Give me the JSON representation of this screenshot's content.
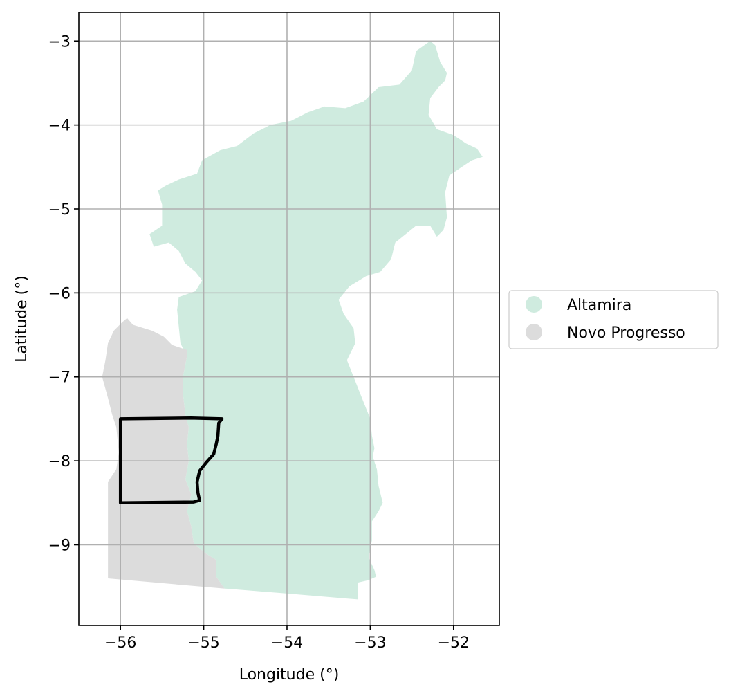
{
  "chart_data": {
    "type": "map",
    "xlabel": "Longitude (°)",
    "ylabel": "Latitude (°)",
    "xlim": [
      -56.5,
      -51.45
    ],
    "ylim": [
      -9.96,
      -2.66
    ],
    "xticks": [
      -56,
      -55,
      -54,
      -53,
      -52
    ],
    "yticks": [
      -3,
      -4,
      -5,
      -6,
      -7,
      -8,
      -9
    ],
    "xtick_labels": [
      "−56",
      "−55",
      "−54",
      "−53",
      "−52"
    ],
    "ytick_labels": [
      "−3",
      "−4",
      "−5",
      "−6",
      "−7",
      "−8",
      "−9"
    ],
    "grid": true,
    "legend_position": "right, outside plot",
    "regions": [
      {
        "name": "Altamira",
        "color": "#cfebdf",
        "outline": [
          [
            -52.28,
            -3.0
          ],
          [
            -52.22,
            -3.05
          ],
          [
            -52.16,
            -3.25
          ],
          [
            -52.08,
            -3.38
          ],
          [
            -52.1,
            -3.47
          ],
          [
            -52.18,
            -3.55
          ],
          [
            -52.28,
            -3.68
          ],
          [
            -52.3,
            -3.88
          ],
          [
            -52.2,
            -4.05
          ],
          [
            -52.0,
            -4.12
          ],
          [
            -51.85,
            -4.22
          ],
          [
            -51.72,
            -4.28
          ],
          [
            -51.65,
            -4.38
          ],
          [
            -51.78,
            -4.42
          ],
          [
            -51.9,
            -4.5
          ],
          [
            -52.05,
            -4.6
          ],
          [
            -52.1,
            -4.8
          ],
          [
            -52.08,
            -5.1
          ],
          [
            -52.12,
            -5.25
          ],
          [
            -52.2,
            -5.33
          ],
          [
            -52.28,
            -5.2
          ],
          [
            -52.45,
            -5.2
          ],
          [
            -52.55,
            -5.28
          ],
          [
            -52.7,
            -5.4
          ],
          [
            -52.75,
            -5.6
          ],
          [
            -52.88,
            -5.75
          ],
          [
            -53.05,
            -5.8
          ],
          [
            -53.25,
            -5.92
          ],
          [
            -53.38,
            -6.08
          ],
          [
            -53.32,
            -6.25
          ],
          [
            -53.2,
            -6.42
          ],
          [
            -53.18,
            -6.6
          ],
          [
            -53.28,
            -6.8
          ],
          [
            -53.2,
            -7.0
          ],
          [
            -53.1,
            -7.25
          ],
          [
            -53.0,
            -7.5
          ],
          [
            -52.98,
            -7.7
          ],
          [
            -52.95,
            -7.85
          ],
          [
            -52.97,
            -7.95
          ],
          [
            -52.92,
            -8.1
          ],
          [
            -52.9,
            -8.3
          ],
          [
            -52.85,
            -8.5
          ],
          [
            -52.9,
            -8.6
          ],
          [
            -52.98,
            -8.72
          ],
          [
            -52.98,
            -8.95
          ],
          [
            -53.02,
            -9.15
          ],
          [
            -52.95,
            -9.3
          ],
          [
            -52.93,
            -9.38
          ],
          [
            -53.02,
            -9.42
          ],
          [
            -53.15,
            -9.45
          ],
          [
            -53.15,
            -9.65
          ],
          [
            -54.0,
            -9.58
          ],
          [
            -54.75,
            -9.52
          ],
          [
            -54.85,
            -9.38
          ],
          [
            -54.85,
            -9.18
          ],
          [
            -54.98,
            -9.1
          ],
          [
            -55.12,
            -8.98
          ],
          [
            -55.15,
            -8.78
          ],
          [
            -55.2,
            -8.6
          ],
          [
            -55.15,
            -8.4
          ],
          [
            -55.22,
            -8.22
          ],
          [
            -55.18,
            -8.0
          ],
          [
            -55.2,
            -7.8
          ],
          [
            -55.18,
            -7.6
          ],
          [
            -55.22,
            -7.45
          ],
          [
            -55.25,
            -7.2
          ],
          [
            -55.25,
            -7.0
          ],
          [
            -55.2,
            -6.75
          ],
          [
            -55.28,
            -6.6
          ],
          [
            -55.3,
            -6.4
          ],
          [
            -55.32,
            -6.2
          ],
          [
            -55.3,
            -6.05
          ],
          [
            -55.1,
            -5.98
          ],
          [
            -55.02,
            -5.85
          ],
          [
            -55.1,
            -5.75
          ],
          [
            -55.22,
            -5.65
          ],
          [
            -55.3,
            -5.5
          ],
          [
            -55.42,
            -5.4
          ],
          [
            -55.6,
            -5.45
          ],
          [
            -55.65,
            -5.3
          ],
          [
            -55.5,
            -5.2
          ],
          [
            -55.5,
            -4.95
          ],
          [
            -55.55,
            -4.78
          ],
          [
            -55.45,
            -4.72
          ],
          [
            -55.3,
            -4.65
          ],
          [
            -55.08,
            -4.58
          ],
          [
            -55.02,
            -4.42
          ],
          [
            -54.8,
            -4.3
          ],
          [
            -54.6,
            -4.25
          ],
          [
            -54.4,
            -4.1
          ],
          [
            -54.2,
            -4.0
          ],
          [
            -53.95,
            -3.95
          ],
          [
            -53.75,
            -3.85
          ],
          [
            -53.55,
            -3.78
          ],
          [
            -53.3,
            -3.8
          ],
          [
            -53.08,
            -3.72
          ],
          [
            -52.9,
            -3.55
          ],
          [
            -52.65,
            -3.52
          ],
          [
            -52.5,
            -3.35
          ],
          [
            -52.45,
            -3.12
          ]
        ]
      },
      {
        "name": "Novo Progresso",
        "color": "#dcdcdc",
        "outline": [
          [
            -55.92,
            -6.3
          ],
          [
            -55.85,
            -6.38
          ],
          [
            -55.62,
            -6.45
          ],
          [
            -55.48,
            -6.52
          ],
          [
            -55.38,
            -6.62
          ],
          [
            -55.2,
            -6.68
          ],
          [
            -55.2,
            -6.75
          ],
          [
            -55.25,
            -7.0
          ],
          [
            -55.25,
            -7.2
          ],
          [
            -55.22,
            -7.45
          ],
          [
            -55.18,
            -7.6
          ],
          [
            -55.2,
            -7.8
          ],
          [
            -55.18,
            -8.0
          ],
          [
            -55.22,
            -8.22
          ],
          [
            -55.15,
            -8.4
          ],
          [
            -55.2,
            -8.6
          ],
          [
            -55.15,
            -8.78
          ],
          [
            -55.12,
            -8.98
          ],
          [
            -54.98,
            -9.1
          ],
          [
            -54.85,
            -9.18
          ],
          [
            -54.85,
            -9.38
          ],
          [
            -54.75,
            -9.52
          ],
          [
            -54.65,
            -9.53
          ],
          [
            -56.15,
            -9.4
          ],
          [
            -56.15,
            -8.25
          ],
          [
            -56.05,
            -8.1
          ],
          [
            -56.02,
            -7.9
          ],
          [
            -56.05,
            -7.6
          ],
          [
            -56.1,
            -7.45
          ],
          [
            -56.15,
            -7.25
          ],
          [
            -56.22,
            -7.0
          ],
          [
            -56.18,
            -6.8
          ],
          [
            -56.15,
            -6.6
          ],
          [
            -56.08,
            -6.45
          ],
          [
            -55.98,
            -6.35
          ]
        ]
      }
    ],
    "study_area_outline": [
      [
        -56.0,
        -7.5
      ],
      [
        -55.15,
        -7.49
      ],
      [
        -54.78,
        -7.5
      ],
      [
        -54.82,
        -7.55
      ],
      [
        -54.83,
        -7.7
      ],
      [
        -54.85,
        -7.8
      ],
      [
        -54.88,
        -7.92
      ],
      [
        -54.97,
        -8.02
      ],
      [
        -55.05,
        -8.12
      ],
      [
        -55.08,
        -8.25
      ],
      [
        -55.07,
        -8.38
      ],
      [
        -55.05,
        -8.47
      ],
      [
        -55.12,
        -8.49
      ],
      [
        -56.0,
        -8.5
      ]
    ]
  },
  "legend": {
    "items": [
      {
        "label": "Altamira",
        "color": "#cfebdf"
      },
      {
        "label": "Novo Progresso",
        "color": "#dcdcdc"
      }
    ]
  }
}
